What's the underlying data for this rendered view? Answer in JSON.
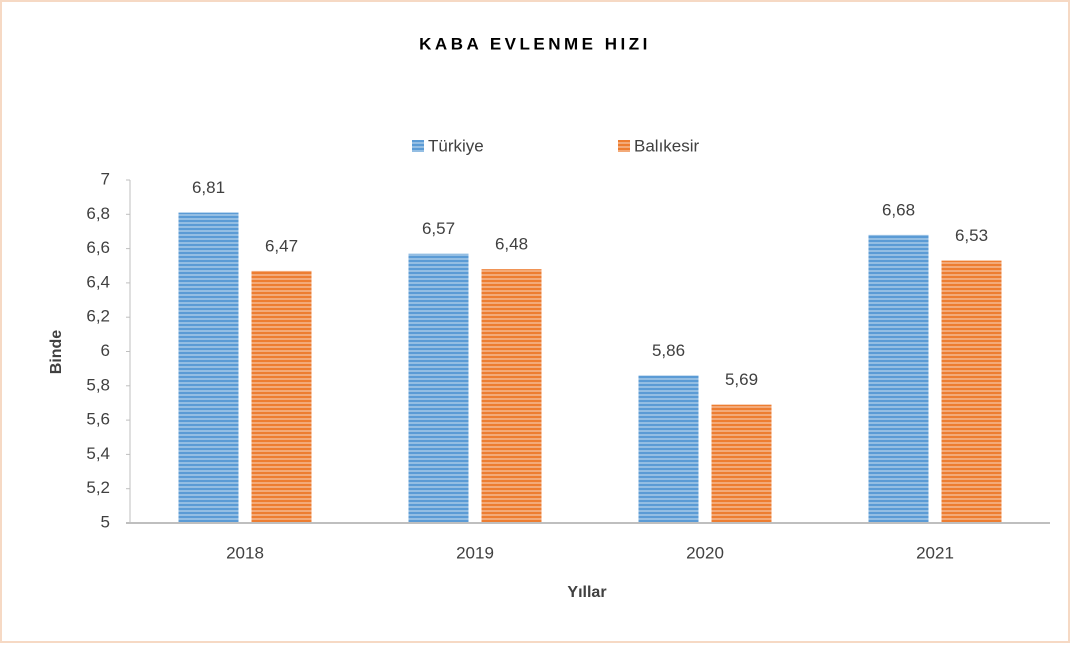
{
  "chart_data": {
    "type": "bar",
    "title": "KABA EVLENME HIZI",
    "x_label": "Yıllar",
    "y_label": "Binde",
    "categories": [
      "2018",
      "2019",
      "2020",
      "2021"
    ],
    "series": [
      {
        "name": "Türkiye",
        "color": "#5b9bd5",
        "values": [
          6.81,
          6.57,
          5.86,
          6.68
        ],
        "value_labels": [
          "6,81",
          "6,57",
          "5,86",
          "6,68"
        ]
      },
      {
        "name": "Balıkesir",
        "color": "#ed7d31",
        "values": [
          6.47,
          6.48,
          5.69,
          6.53
        ],
        "value_labels": [
          "6,47",
          "6,48",
          "5,69",
          "6,53"
        ]
      }
    ],
    "ylim": [
      5,
      7
    ],
    "yticks": [
      5,
      {
        "value": 5.2,
        "label": "5,2"
      },
      {
        "value": 5.4,
        "label": "5,4"
      },
      {
        "value": 5.6,
        "label": "5,6"
      },
      {
        "value": 5.8,
        "label": "5,8"
      },
      6,
      {
        "value": 6.2,
        "label": "6,2"
      },
      {
        "value": 6.4,
        "label": "6,4"
      },
      {
        "value": 6.6,
        "label": "6,6"
      },
      {
        "value": 6.8,
        "label": "6,8"
      },
      7
    ],
    "legend": "top",
    "grid": false
  }
}
